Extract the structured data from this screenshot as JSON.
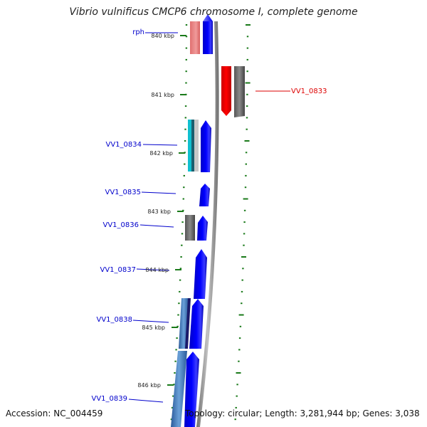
{
  "title": "Vibrio vulnificus CMCP6 chromosome I, complete genome",
  "footer": {
    "accession": "Accession: NC_004459",
    "summary": "Topology: circular; Length: 3,281,944 bp; Genes: 3,038"
  },
  "colors": {
    "forward_gene": "#0000ee",
    "label_blue": "#0000cc",
    "label_red": "#dd0000",
    "tick_green": "#1a7a1a",
    "backbone": "#9a9a9a"
  },
  "position_ticks": [
    "840 kbp",
    "841 kbp",
    "842 kbp",
    "843 kbp",
    "844 kbp",
    "845 kbp",
    "846 kbp"
  ],
  "gene_labels": [
    "rph",
    "VV1_0833",
    "VV1_0834",
    "VV1_0835",
    "VV1_0836",
    "VV1_0837",
    "VV1_0838",
    "VV1_0839"
  ]
}
